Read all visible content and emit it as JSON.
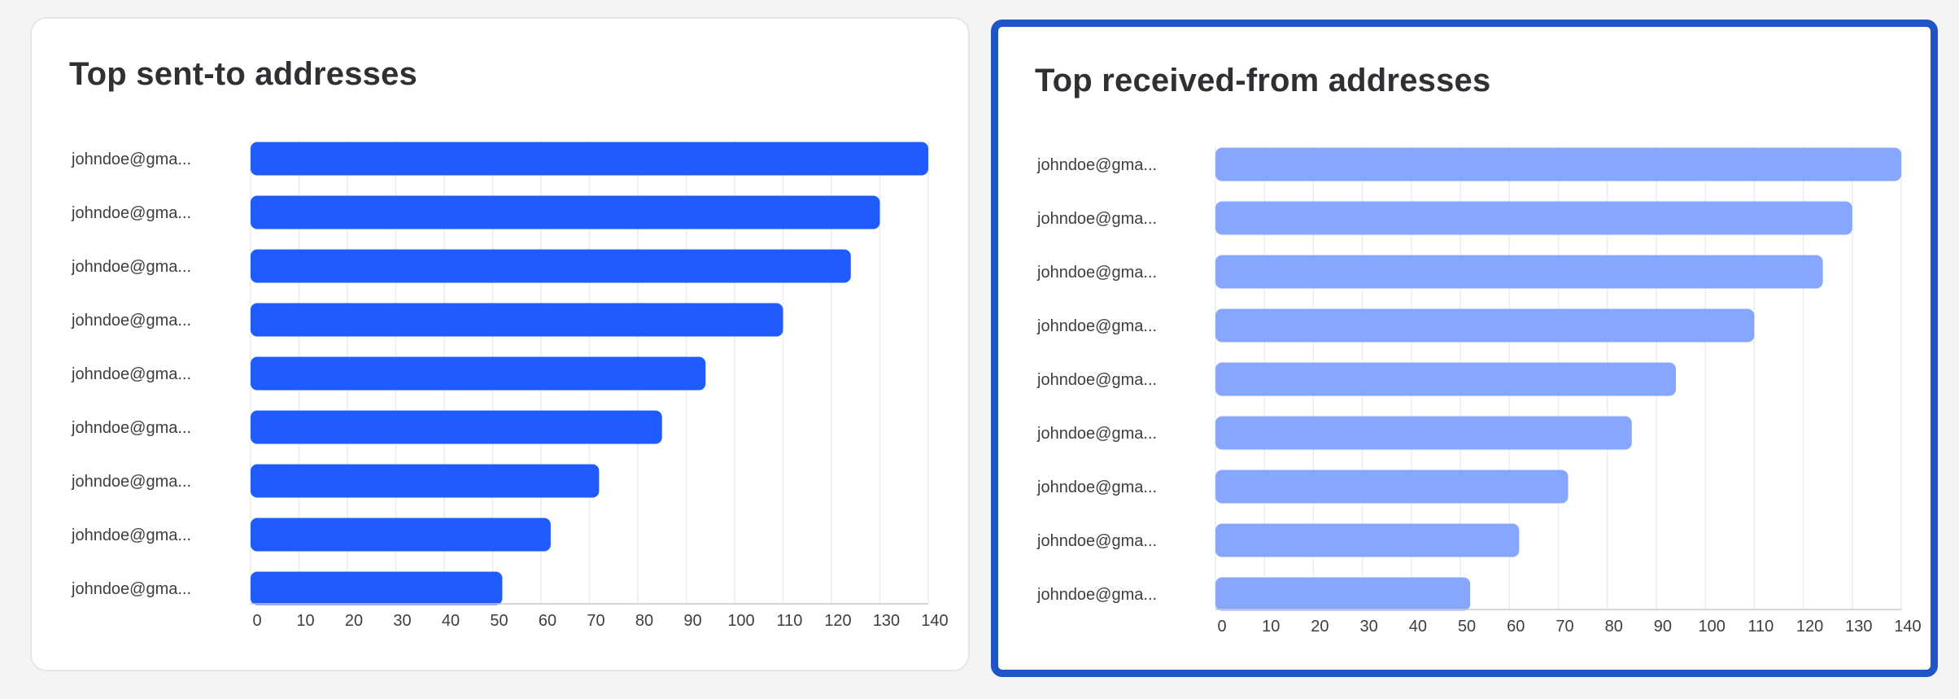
{
  "colors": {
    "sent_bar": "#1f5bff",
    "received_bar": "#87a6ff",
    "selected_border": "#1f55c6",
    "grid": "#ececef",
    "axis": "#c9c9cd"
  },
  "chart_data": [
    {
      "type": "bar",
      "orientation": "horizontal",
      "title": "Top sent-to addresses",
      "categories": [
        "johndoe@gma...",
        "johndoe@gma...",
        "johndoe@gma...",
        "johndoe@gma...",
        "johndoe@gma...",
        "johndoe@gma...",
        "johndoe@gma...",
        "johndoe@gma...",
        "johndoe@gma..."
      ],
      "values": [
        140,
        130,
        124,
        110,
        94,
        85,
        72,
        62,
        52
      ],
      "xlim": [
        0,
        140
      ],
      "xticks": [
        0,
        10,
        20,
        30,
        40,
        50,
        60,
        70,
        80,
        90,
        100,
        110,
        120,
        130,
        140
      ],
      "grid": true,
      "legend": "none"
    },
    {
      "type": "bar",
      "orientation": "horizontal",
      "title": "Top received-from addresses",
      "categories": [
        "johndoe@gma...",
        "johndoe@gma...",
        "johndoe@gma...",
        "johndoe@gma...",
        "johndoe@gma...",
        "johndoe@gma...",
        "johndoe@gma...",
        "johndoe@gma...",
        "johndoe@gma..."
      ],
      "values": [
        140,
        130,
        124,
        110,
        94,
        85,
        72,
        62,
        52
      ],
      "xlim": [
        0,
        140
      ],
      "xticks": [
        0,
        10,
        20,
        30,
        40,
        50,
        60,
        70,
        80,
        90,
        100,
        110,
        120,
        130,
        140
      ],
      "grid": true,
      "legend": "none"
    }
  ]
}
